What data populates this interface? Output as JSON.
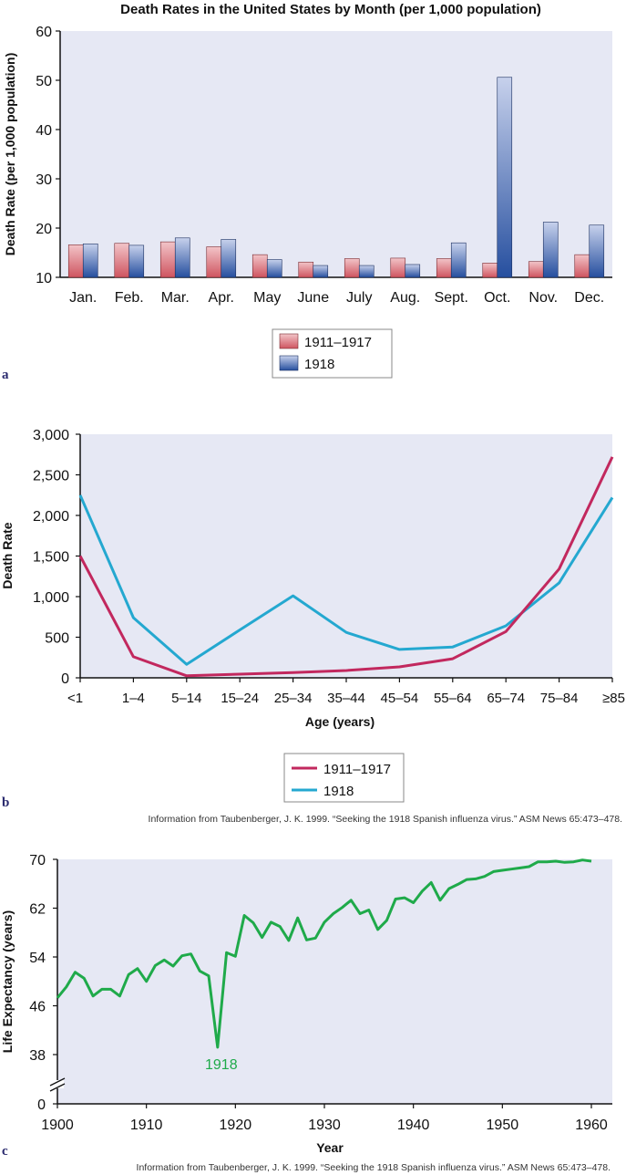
{
  "colors": {
    "plot_bg": "#e6e8f4",
    "red_bar": "#d9717a",
    "blue_bar": "#4a6eb5",
    "line_red": "#c2285e",
    "line_blue": "#24a8d0",
    "line_green": "#1faa4a",
    "panel_letter": "#2a2a6e"
  },
  "panels": {
    "a": "a",
    "b": "b",
    "c": "c"
  },
  "source_b": "Information from Taubenberger, J. K. 1999. “Seeking the 1918 Spanish influenza virus.” ASM News 65:473–478.",
  "source_c": "Information from Taubenberger, J. K. 1999. “Seeking the 1918 Spanish influenza virus.” ASM News 65:473–478.",
  "chart_data": [
    {
      "type": "bar",
      "title": "Death Rates in the United States by Month (per 1,000 population)",
      "xlabel": "",
      "ylabel": "Death Rate (per 1,000 population)",
      "ylim": [
        10,
        60
      ],
      "yticks": [
        "10",
        "20",
        "30",
        "40",
        "50",
        "60"
      ],
      "categories": [
        "Jan.",
        "Feb.",
        "Mar.",
        "Apr.",
        "May",
        "June",
        "July",
        "Aug.",
        "Sept.",
        "Oct.",
        "Nov.",
        "Dec."
      ],
      "series": [
        {
          "name": "1911–1917",
          "values": [
            16.6,
            16.9,
            17.2,
            16.2,
            14.6,
            13.1,
            13.8,
            13.9,
            13.8,
            12.9,
            13.2,
            14.6
          ]
        },
        {
          "name": "1918",
          "values": [
            16.8,
            16.5,
            18.0,
            17.7,
            13.6,
            12.4,
            12.4,
            12.6,
            17.0,
            50.6,
            21.2,
            20.6
          ]
        }
      ],
      "legend": "bottom-center",
      "grid": false
    },
    {
      "type": "line",
      "title": "",
      "xlabel": "Age (years)",
      "ylabel": "Death Rate",
      "ylim": [
        0,
        3000
      ],
      "yticks": [
        "0",
        "500",
        "1,000",
        "1,500",
        "2,000",
        "2,500",
        "3,000"
      ],
      "categories": [
        "<1",
        "1–4",
        "5–14",
        "15–24",
        "25–34",
        "35–44",
        "45–54",
        "55–64",
        "65–74",
        "75–84",
        "≥85"
      ],
      "series": [
        {
          "name": "1911–1917",
          "values": [
            1500,
            260,
            25,
            45,
            65,
            90,
            135,
            235,
            570,
            1340,
            2720
          ]
        },
        {
          "name": "1918",
          "values": [
            2250,
            740,
            165,
            590,
            1010,
            560,
            350,
            380,
            640,
            1170,
            2220
          ]
        }
      ],
      "legend": "bottom-center",
      "grid": false
    },
    {
      "type": "line",
      "title": "",
      "xlabel": "Year",
      "ylabel": "Life Expectancy (years)",
      "ylim": [
        0,
        70
      ],
      "axis_break": true,
      "yticks": [
        "0",
        "38",
        "46",
        "54",
        "62",
        "70"
      ],
      "xticks": [
        "1900",
        "1910",
        "1920",
        "1930",
        "1940",
        "1950",
        "1960"
      ],
      "annotation": {
        "text": "1918",
        "x": 1918,
        "y": 39.2
      },
      "series": [
        {
          "x": [
            1900,
            1901,
            1902,
            1903,
            1904,
            1905,
            1906,
            1907,
            1908,
            1909,
            1910,
            1911,
            1912,
            1913,
            1914,
            1915,
            1916,
            1917,
            1918,
            1919,
            1920,
            1921,
            1922,
            1923,
            1924,
            1925,
            1926,
            1927,
            1928,
            1929,
            1930,
            1931,
            1932,
            1933,
            1934,
            1935,
            1936,
            1937,
            1938,
            1939,
            1940,
            1941,
            1942,
            1943,
            1944,
            1945,
            1946,
            1947,
            1948,
            1949,
            1950,
            1951,
            1952,
            1953,
            1954,
            1955,
            1956,
            1957,
            1958,
            1959,
            1960
          ],
          "values": [
            47.3,
            49.1,
            51.5,
            50.5,
            47.6,
            48.7,
            48.7,
            47.6,
            51.1,
            52.1,
            50.0,
            52.6,
            53.5,
            52.5,
            54.2,
            54.5,
            51.7,
            50.9,
            39.2,
            54.7,
            54.1,
            60.8,
            59.6,
            57.2,
            59.7,
            59.0,
            56.7,
            60.4,
            56.8,
            57.1,
            59.7,
            61.1,
            62.1,
            63.3,
            61.1,
            61.7,
            58.5,
            60.0,
            63.5,
            63.7,
            62.9,
            64.8,
            66.2,
            63.3,
            65.2,
            65.9,
            66.7,
            66.8,
            67.2,
            68.0,
            68.2,
            68.4,
            68.6,
            68.8,
            69.6,
            69.6,
            69.7,
            69.5,
            69.6,
            69.9,
            69.7
          ]
        }
      ],
      "legend": "none",
      "grid": false
    }
  ]
}
